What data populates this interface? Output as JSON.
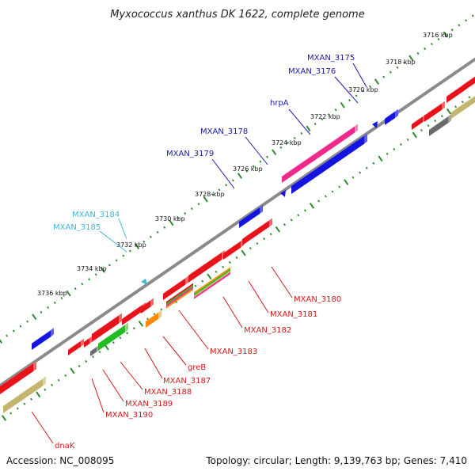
{
  "title": "Myxococcus xanthus DK 1622, complete genome",
  "footer": {
    "accession": "Accession: NC_008095",
    "info": "Topology: circular; Length: 9,139,763 bp; Genes: 7,410"
  },
  "colors": {
    "backbone": "#8a8a8a",
    "tick": "#2e8b2e",
    "label_blue": "#1a1aa8",
    "label_cyan": "#3fb7d9",
    "label_red": "#d21a1a"
  },
  "kbp_ticks": [
    "3716 kbp",
    "3718 kbp",
    "3720 kbp",
    "3722 kbp",
    "3724 kbp",
    "3726 kbp",
    "3728 kbp",
    "3730 kbp",
    "3732 kbp",
    "3734 kbp",
    "3736 kbp"
  ],
  "genes_top": [
    {
      "label": "MXAN_3175",
      "color_key": "label_blue"
    },
    {
      "label": "MXAN_3176",
      "color_key": "label_blue"
    },
    {
      "label": "hrpA",
      "color_key": "label_blue"
    },
    {
      "label": "MXAN_3178",
      "color_key": "label_blue"
    },
    {
      "label": "MXAN_3179",
      "color_key": "label_blue"
    },
    {
      "label": "MXAN_3184",
      "color_key": "label_cyan"
    },
    {
      "label": "MXAN_3185",
      "color_key": "label_cyan"
    }
  ],
  "genes_bottom": [
    {
      "label": "MXAN_3180"
    },
    {
      "label": "MXAN_3181"
    },
    {
      "label": "MXAN_3182"
    },
    {
      "label": "MXAN_3183"
    },
    {
      "label": "greB"
    },
    {
      "label": "MXAN_3187"
    },
    {
      "label": "MXAN_3188"
    },
    {
      "label": "MXAN_3189"
    },
    {
      "label": "MXAN_3190"
    },
    {
      "label": "dnaK"
    }
  ]
}
